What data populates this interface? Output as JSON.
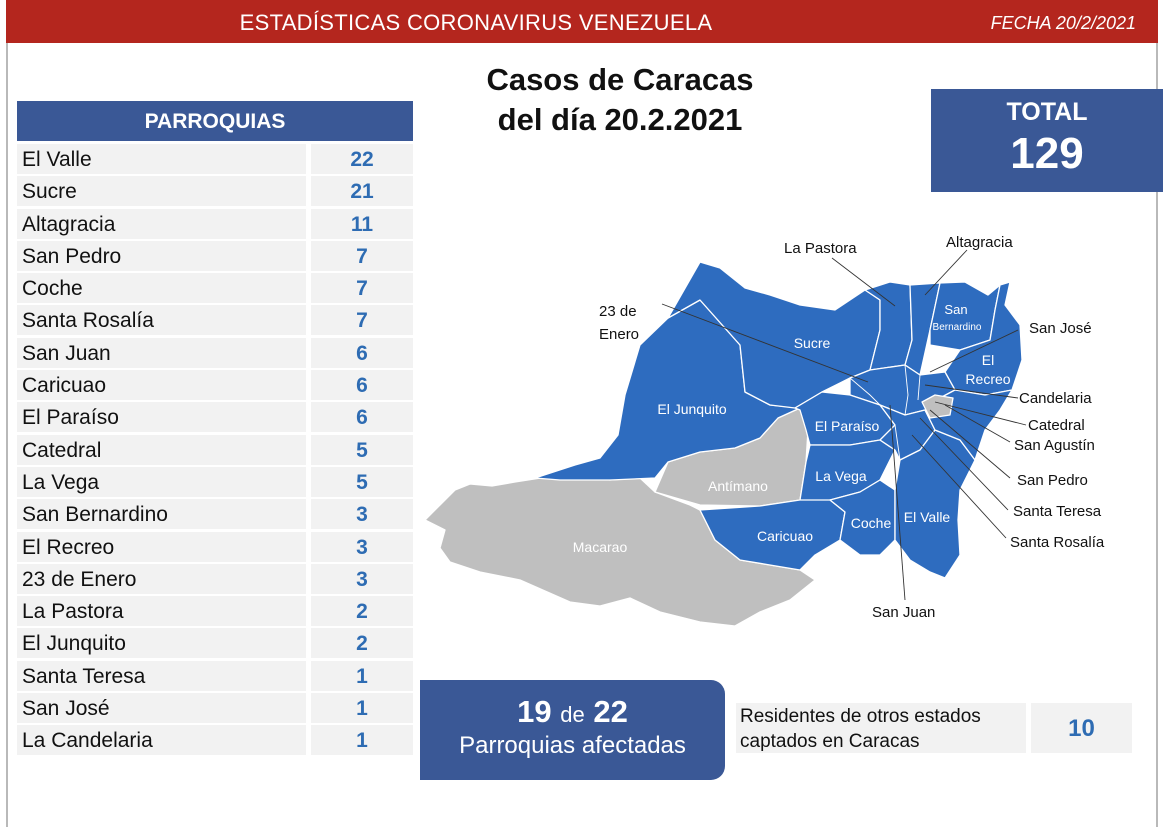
{
  "header": {
    "title": "ESTADÍSTICAS CORONAVIRUS VENEZUELA",
    "date": "FECHA 20/2/2021"
  },
  "page_title": [
    "Casos de Caracas",
    "del día 20.2.2021"
  ],
  "table": {
    "header": "PARROQUIAS",
    "rows": [
      {
        "name": "El Valle",
        "value": "22"
      },
      {
        "name": "Sucre",
        "value": "21"
      },
      {
        "name": "Altagracia",
        "value": "11"
      },
      {
        "name": "San Pedro",
        "value": "7"
      },
      {
        "name": "Coche",
        "value": "7"
      },
      {
        "name": "Santa Rosalía",
        "value": "7"
      },
      {
        "name": "San Juan",
        "value": "6"
      },
      {
        "name": "Caricuao",
        "value": "6"
      },
      {
        "name": "El Paraíso",
        "value": "6"
      },
      {
        "name": "Catedral",
        "value": "5"
      },
      {
        "name": "La Vega",
        "value": "5"
      },
      {
        "name": "San Bernardino",
        "value": "3"
      },
      {
        "name": "El Recreo",
        "value": "3"
      },
      {
        "name": "23 de Enero",
        "value": "3"
      },
      {
        "name": "La Pastora",
        "value": "2"
      },
      {
        "name": "El Junquito",
        "value": "2"
      },
      {
        "name": "Santa Teresa",
        "value": "1"
      },
      {
        "name": "San José",
        "value": "1"
      },
      {
        "name": "La Candelaria",
        "value": "1"
      }
    ]
  },
  "total": {
    "label": "TOTAL",
    "value": "129"
  },
  "affected": {
    "count": "19",
    "connector": "de",
    "of": "22",
    "label": "Parroquias afectadas"
  },
  "residents": {
    "label": "Residentes de otros estados captados en Caracas",
    "value": "10"
  },
  "map": {
    "labels_inside": {
      "sucre": "Sucre",
      "el_junquito": "El Junquito",
      "el_paraiso": "El Paraíso",
      "la_vega": "La Vega",
      "antimano": "Antímano",
      "macarao": "Macarao",
      "caricuao": "Caricuao",
      "coche": "Coche",
      "el_valle": "El Valle",
      "san_bernardino": [
        "San",
        "Bernardino"
      ],
      "el_recreo": [
        "El",
        "Recreo"
      ]
    },
    "callouts": {
      "la_pastora": "La Pastora",
      "altagracia": "Altagracia",
      "enero": [
        "23 de",
        "Enero"
      ],
      "san_jose": "San José",
      "candelaria": "Candelaria",
      "catedral": "Catedral",
      "san_agustin": "San Agustín",
      "san_pedro": "San Pedro",
      "santa_teresa": "Santa Teresa",
      "santa_rosalia": "Santa Rosalía",
      "san_juan": "San Juan"
    },
    "colors": {
      "affected": "#2e6cbf",
      "unaffected": "#bfbfbf",
      "border": "#ffffff"
    }
  }
}
